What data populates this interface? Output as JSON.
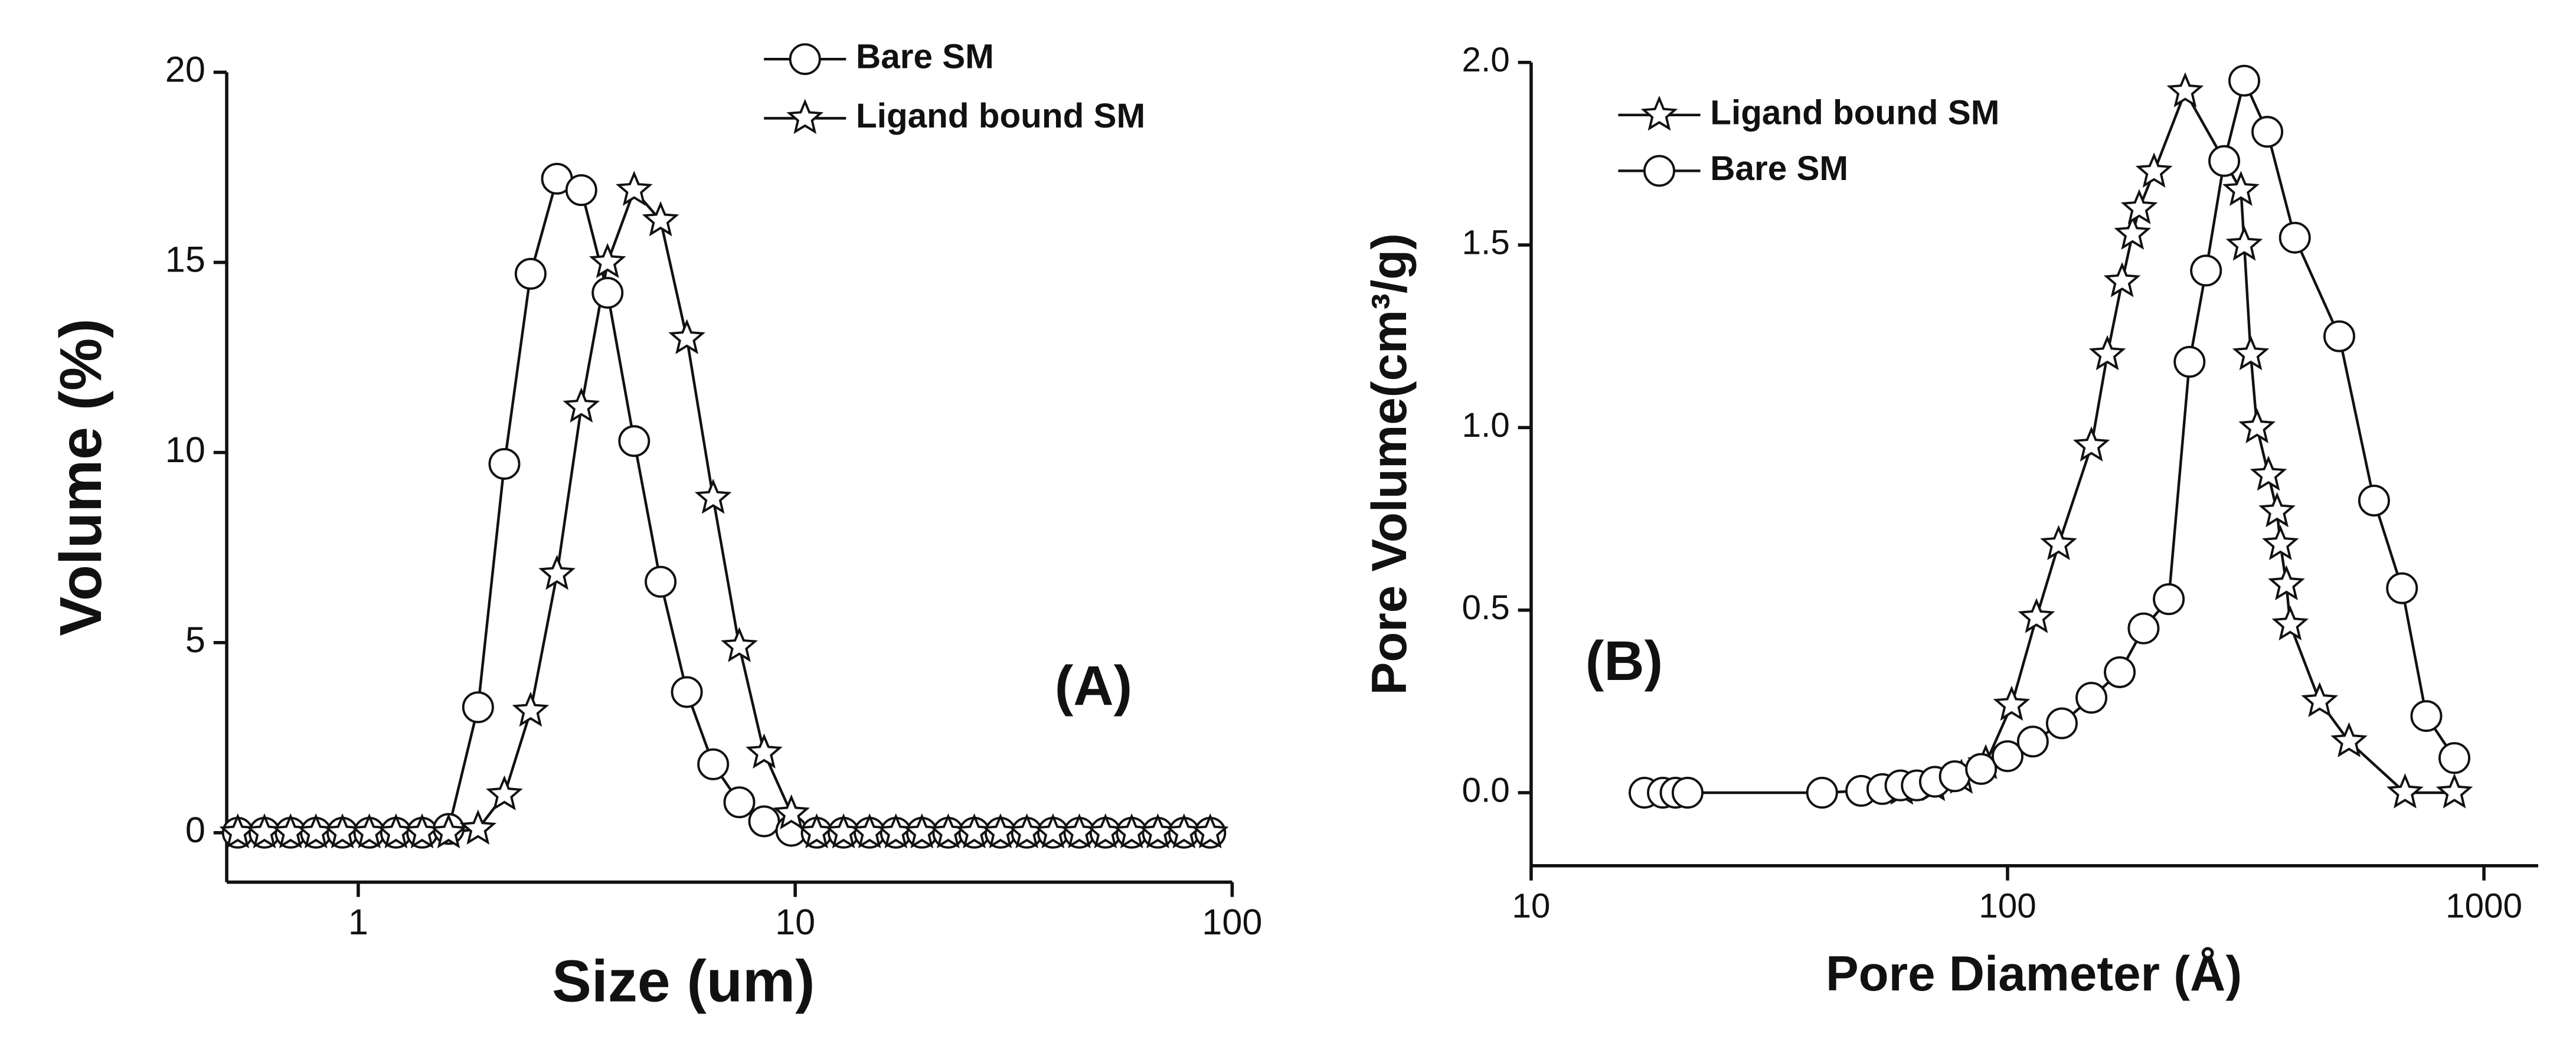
{
  "chart_data": [
    {
      "type": "line",
      "x_scale": "log",
      "annotation": "(A)",
      "x_label": "Size (um)",
      "y_label": "Volume (%)",
      "legend": "upper right",
      "xlim": [
        0.5,
        100
      ],
      "xticks": [
        1,
        10,
        100
      ],
      "ylim": [
        -1.3,
        20
      ],
      "yticks": [
        0,
        5,
        10,
        15,
        20
      ],
      "series": [
        {
          "name": "Bare SM",
          "color": "#111111",
          "marker": "circle",
          "x": [
            0.53,
            0.61,
            0.7,
            0.8,
            0.92,
            1.06,
            1.22,
            1.4,
            1.61,
            1.88,
            2.16,
            2.48,
            2.85,
            3.24,
            3.72,
            4.28,
            4.92,
            5.65,
            6.49,
            7.45,
            8.49,
            9.8,
            11.2,
            12.9,
            14.8,
            17.0,
            19.5,
            22.4,
            25.7,
            29.5,
            33.9,
            38.9,
            44.7,
            51.3,
            58.9,
            67.6,
            77.6,
            89.1
          ],
          "values": [
            0,
            0,
            0,
            0,
            0,
            0,
            0,
            0,
            0.1,
            3.3,
            9.7,
            14.7,
            17.2,
            16.9,
            14.2,
            10.3,
            6.6,
            3.7,
            1.8,
            0.8,
            0.3,
            0.05,
            0,
            0,
            0,
            0,
            0,
            0,
            0,
            0,
            0,
            0,
            0,
            0,
            0,
            0,
            0,
            0
          ]
        },
        {
          "name": "Ligand bound SM",
          "color": "#111111",
          "marker": "star",
          "x": [
            0.53,
            0.61,
            0.7,
            0.8,
            0.92,
            1.06,
            1.22,
            1.4,
            1.61,
            1.88,
            2.16,
            2.48,
            2.85,
            3.24,
            3.72,
            4.28,
            4.92,
            5.65,
            6.49,
            7.45,
            8.49,
            9.8,
            11.2,
            12.9,
            14.8,
            17.0,
            19.5,
            22.4,
            25.7,
            29.5,
            33.9,
            38.9,
            44.7,
            51.3,
            58.9,
            67.6,
            77.6,
            89.1
          ],
          "values": [
            0,
            0,
            0,
            0,
            0,
            0,
            0,
            0,
            0,
            0.1,
            1.0,
            3.2,
            6.8,
            11.2,
            15.0,
            16.9,
            16.1,
            13.0,
            8.8,
            4.9,
            2.1,
            0.5,
            0,
            0,
            0,
            0,
            0,
            0,
            0,
            0,
            0,
            0,
            0,
            0,
            0,
            0,
            0,
            0
          ]
        }
      ]
    },
    {
      "type": "line",
      "x_scale": "log",
      "annotation": "(B)",
      "x_label": "Pore Diameter (Å)",
      "y_label": "Pore Volume(cm³/g)",
      "legend": "upper left",
      "xlim": [
        10,
        1300
      ],
      "xticks": [
        10,
        100,
        1000
      ],
      "ylim": [
        -0.2,
        2.0
      ],
      "yticks": [
        {
          "value": 0,
          "label": "0.0"
        },
        {
          "value": 0.5,
          "label": "0.5"
        },
        {
          "value": 1,
          "label": "1.0"
        },
        {
          "value": 1.5,
          "label": "1.5"
        },
        {
          "value": 2,
          "label": "2.0"
        }
      ],
      "series": [
        {
          "name": "Ligand bound SM",
          "color": "#111111",
          "marker": "star",
          "x": [
            60,
            70,
            80,
            90,
            102,
            115,
            128,
            150,
            162,
            174,
            183,
            189,
            203,
            236,
            309,
            314,
            324,
            334,
            353,
            368,
            374,
            385,
            392,
            452,
            521,
            683,
            867
          ],
          "values": [
            0.01,
            0.02,
            0.04,
            0.08,
            0.24,
            0.48,
            0.68,
            0.95,
            1.2,
            1.4,
            1.53,
            1.6,
            1.7,
            1.92,
            1.65,
            1.5,
            1.2,
            1.0,
            0.87,
            0.77,
            0.68,
            0.57,
            0.46,
            0.25,
            0.14,
            0,
            0
          ]
        },
        {
          "name": "Bare SM",
          "color": "#111111",
          "marker": "circle",
          "x": [
            17.3,
            18.9,
            20.1,
            21.3,
            40.8,
            49.3,
            54.6,
            59.6,
            64.5,
            70.4,
            77.5,
            88,
            100,
            113,
            130,
            150,
            172,
            193,
            218,
            241,
            261,
            285,
            314,
            351,
            401,
            497,
            588,
            673,
            757,
            867
          ],
          "values": [
            0,
            0,
            0,
            0,
            0,
            0.005,
            0.01,
            0.02,
            0.02,
            0.03,
            0.045,
            0.065,
            0.1,
            0.14,
            0.19,
            0.26,
            0.33,
            0.45,
            0.53,
            1.18,
            1.43,
            1.73,
            1.95,
            1.81,
            1.52,
            1.25,
            0.8,
            0.56,
            0.21,
            0.095
          ]
        }
      ]
    }
  ]
}
